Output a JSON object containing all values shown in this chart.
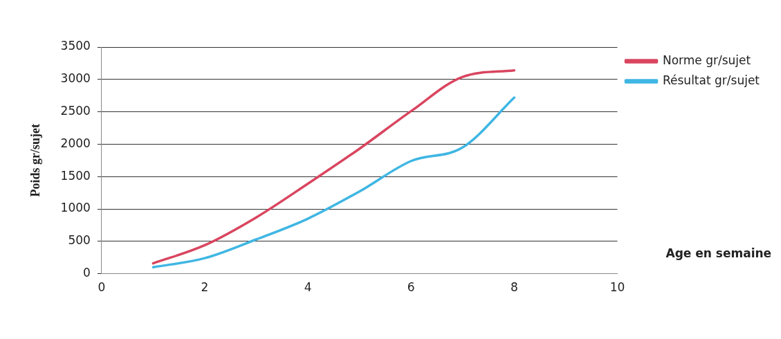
{
  "chart_data": {
    "type": "line",
    "xlabel": "Age en semaine",
    "ylabel": "Poids gr/sujet",
    "x": [
      1,
      2,
      3,
      4,
      5,
      6,
      7,
      8
    ],
    "series": [
      {
        "name": "Norme gr/sujet",
        "color": "#d9455f",
        "values": [
          160,
          440,
          870,
          1390,
          1930,
          2510,
          3040,
          3140
        ]
      },
      {
        "name": "Résultat gr/sujet",
        "color": "#3fb6e3",
        "values": [
          100,
          240,
          530,
          850,
          1270,
          1740,
          1950,
          2720
        ]
      }
    ],
    "xlim": [
      0,
      10
    ],
    "xticks": [
      0,
      2,
      4,
      6,
      8,
      10
    ],
    "ylim": [
      0,
      3500
    ],
    "yticks": [
      0,
      500,
      1000,
      1500,
      2000,
      2500,
      3000,
      3500
    ],
    "grid": "y",
    "legend": "right",
    "marker": "none"
  }
}
